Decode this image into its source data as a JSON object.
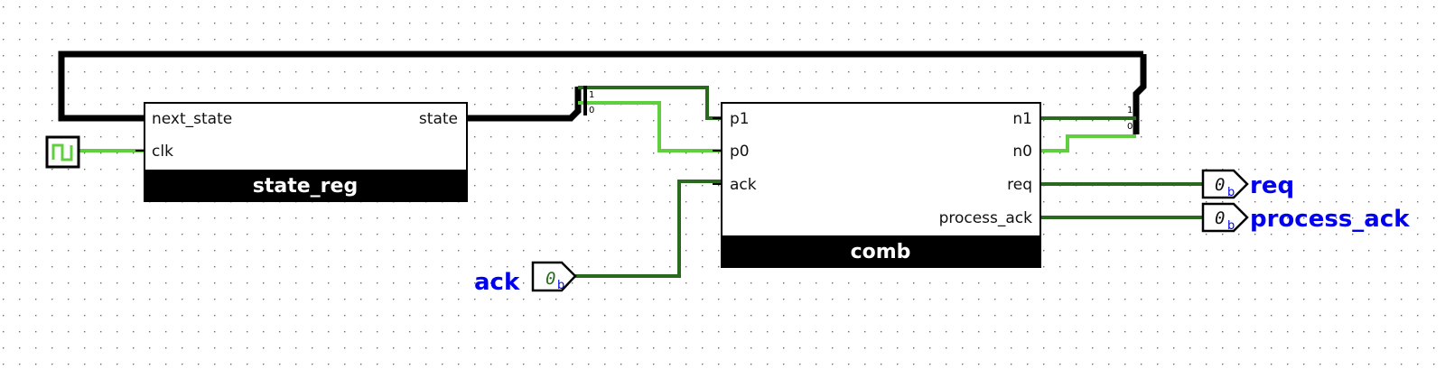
{
  "colors": {
    "wire_dark": "#2a6a1e",
    "wire_light": "#5fcf3f",
    "wire_bus": "#000000",
    "label_blue": "#0000ee",
    "component_title_bg": "#000000"
  },
  "components": {
    "state_reg": {
      "title": "state_reg",
      "inputs": [
        "next_state",
        "clk"
      ],
      "outputs": [
        "state"
      ]
    },
    "comb": {
      "title": "comb",
      "inputs": [
        "p1",
        "p0",
        "ack"
      ],
      "outputs": [
        "n1",
        "n0",
        "req",
        "process_ack"
      ]
    }
  },
  "splitters": {
    "left": {
      "bits": [
        "1",
        "0"
      ]
    },
    "right": {
      "bits": [
        "1",
        "0"
      ]
    }
  },
  "pins": {
    "ack": {
      "label": "ack",
      "value": "0",
      "radix": "b"
    },
    "req": {
      "label": "req",
      "value": "0",
      "radix": "b"
    },
    "process_ack": {
      "label": "process_ack",
      "value": "0",
      "radix": "b"
    }
  },
  "clock": {
    "icon": "clock-square-wave-icon"
  }
}
